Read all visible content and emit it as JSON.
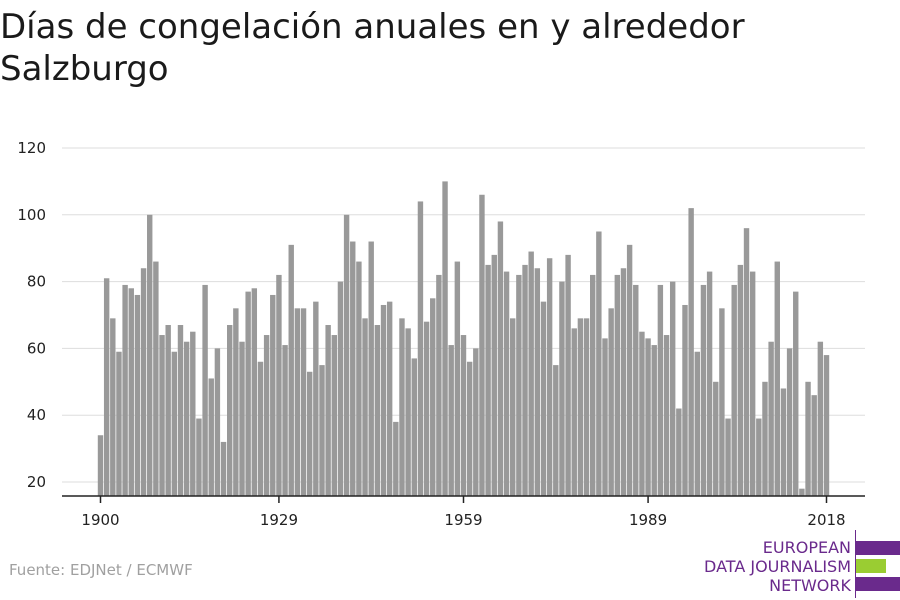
{
  "header": {
    "title": "Días de congelación anuales en y alrededor Salzburgo"
  },
  "footer": {
    "source": "Fuente: EDJNet / ECMWF"
  },
  "logo": {
    "line1": "EUROPEAN",
    "line2": "DATA JOURNALISM",
    "line3": "NETWORK",
    "colors": {
      "purple": "#6a2a8c",
      "green": "#9acd32"
    }
  },
  "chart_data": {
    "type": "bar",
    "title": "Días de congelación anuales en y alrededor Salzburgo",
    "xlabel": "",
    "ylabel": "",
    "x_start": 1900,
    "x_end": 2018,
    "xticks": [
      1900,
      1929,
      1959,
      1989,
      2018
    ],
    "yticks": [
      20,
      40,
      60,
      80,
      100,
      120
    ],
    "ylim": [
      15,
      120
    ],
    "grid": true,
    "bar_color": "#999999",
    "values": [
      34,
      81,
      69,
      59,
      79,
      78,
      76,
      84,
      100,
      86,
      64,
      67,
      59,
      67,
      62,
      65,
      39,
      79,
      51,
      60,
      32,
      67,
      72,
      62,
      77,
      78,
      56,
      64,
      76,
      82,
      61,
      91,
      72,
      72,
      53,
      74,
      55,
      67,
      64,
      80,
      100,
      92,
      86,
      69,
      92,
      67,
      73,
      74,
      38,
      69,
      66,
      57,
      104,
      68,
      75,
      82,
      110,
      61,
      86,
      64,
      56,
      60,
      106,
      85,
      88,
      98,
      83,
      69,
      82,
      85,
      89,
      84,
      74,
      87,
      55,
      80,
      88,
      66,
      69,
      69,
      82,
      95,
      63,
      72,
      82,
      84,
      91,
      79,
      65,
      63,
      61,
      79,
      64,
      80,
      42,
      73,
      102,
      59,
      79,
      83,
      50,
      72,
      39,
      79,
      85,
      96,
      83,
      39,
      50,
      62,
      86,
      48,
      60,
      77,
      18,
      50,
      46,
      62,
      58
    ]
  }
}
